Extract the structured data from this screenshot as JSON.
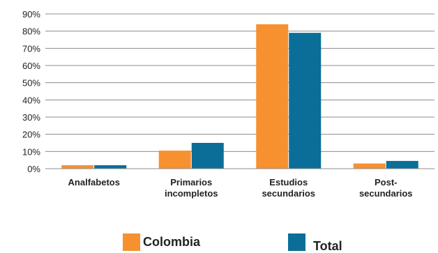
{
  "chart_data": {
    "type": "bar",
    "categories": [
      [
        "Analfabetos"
      ],
      [
        "Primarios",
        "incompletos"
      ],
      [
        "Estudios",
        "secundarios"
      ],
      [
        "Post-",
        "secundarios"
      ]
    ],
    "series": [
      {
        "name": "Colombia",
        "color": "#f7902f",
        "values": [
          2,
          10.5,
          84,
          3
        ]
      },
      {
        "name": "Total",
        "color": "#0a6e98",
        "values": [
          2,
          15,
          79,
          4.5
        ]
      }
    ],
    "ylim": [
      0,
      90
    ],
    "yticks": [
      0,
      10,
      20,
      30,
      40,
      50,
      60,
      70,
      80,
      90
    ],
    "ytick_labels": [
      "0%",
      "10%",
      "20%",
      "30%",
      "40%",
      "50%",
      "60%",
      "70%",
      "80%",
      "90%"
    ],
    "grid": true,
    "legend_position": "bottom"
  }
}
